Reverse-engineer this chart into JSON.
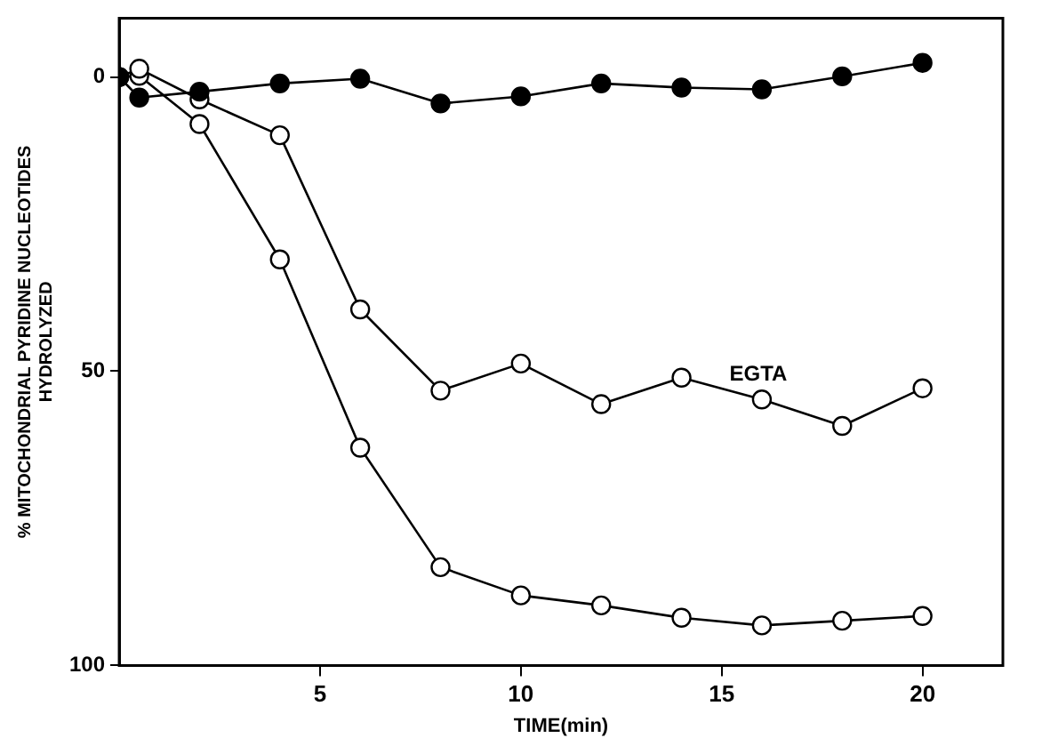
{
  "chart_data": {
    "type": "line",
    "xlabel": "TIME(min)",
    "ylabel": "% MITOCHONDRIAL PYRIDINE NUCLEOTIDES\nHYDROLYZED",
    "xlim": [
      0,
      22
    ],
    "xticks": [
      5,
      10,
      15,
      20
    ],
    "ylim": [
      100,
      -10
    ],
    "yticks": [
      0,
      50,
      100
    ],
    "grid": false,
    "legend": false,
    "marker": "circle",
    "line_style": "solid",
    "series": [
      {
        "color": "#000000",
        "x": [
          0,
          0.5,
          2,
          4,
          6,
          8,
          10,
          12,
          14,
          16,
          18,
          20
        ],
        "values": [
          0,
          3.5,
          2.5,
          1.1,
          0.3,
          4.5,
          3.3,
          1.1,
          1.8,
          2.1,
          -0.1,
          -2.4
        ]
      },
      {
        "name": "EGTA",
        "color": "#ffffff",
        "x": [
          0,
          0.5,
          2,
          4,
          6,
          8,
          10,
          12,
          14,
          16,
          18,
          20
        ],
        "values": [
          0,
          -1.4,
          3.8,
          9.9,
          39.5,
          53.3,
          48.7,
          55.6,
          51.1,
          54.8,
          59.3,
          52.9
        ]
      },
      {
        "color": "#ffffff",
        "x": [
          0,
          0.5,
          2,
          4,
          6,
          8,
          10,
          12,
          14,
          16,
          18,
          20
        ],
        "values": [
          0,
          -0.2,
          8,
          31,
          63,
          83.3,
          88.1,
          89.8,
          91.9,
          93.2,
          92.4,
          91.6
        ]
      }
    ]
  }
}
